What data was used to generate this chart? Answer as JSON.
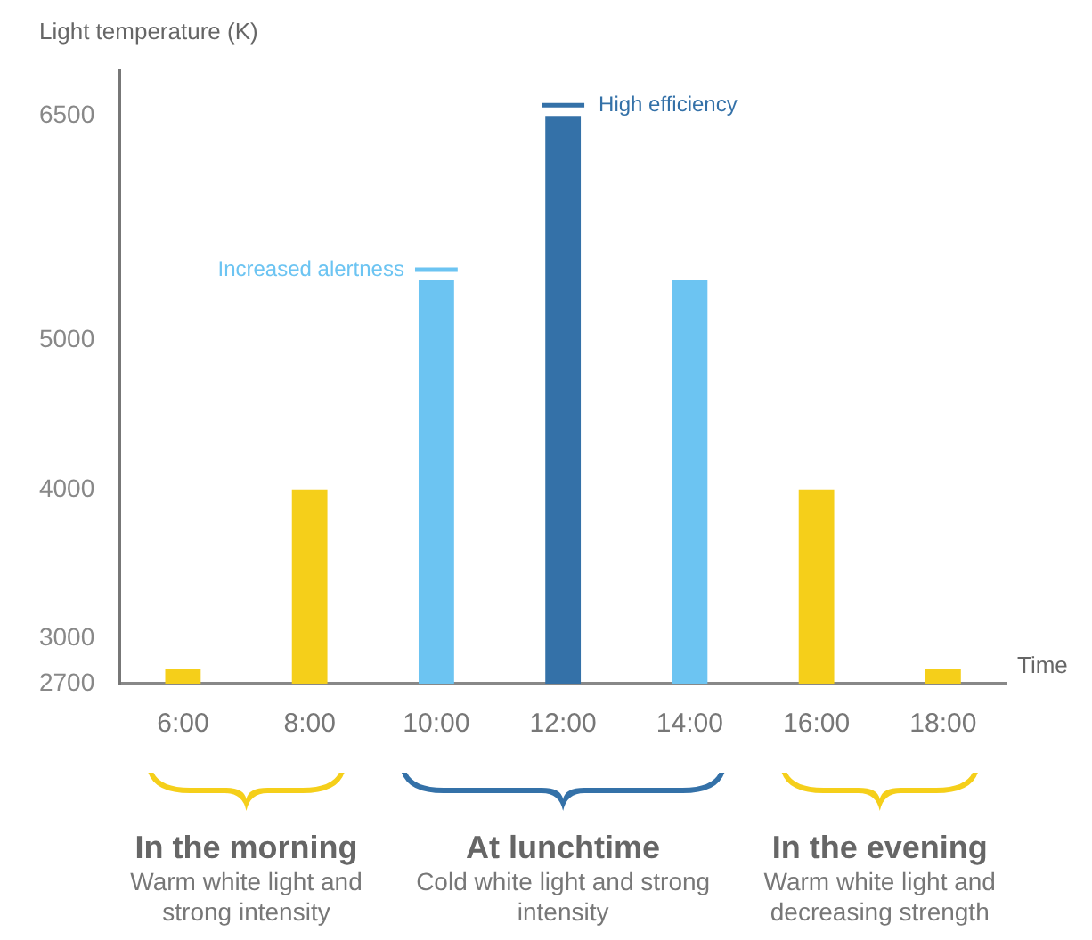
{
  "chart_data": {
    "type": "bar",
    "ylabel": "Light temperature (K)",
    "xlabel": "Time",
    "categories": [
      "6:00",
      "8:00",
      "10:00",
      "12:00",
      "14:00",
      "16:00",
      "18:00"
    ],
    "values": [
      2800,
      4000,
      5400,
      6500,
      5400,
      4000,
      2800
    ],
    "colors": [
      "#f5cf1a",
      "#f5cf1a",
      "#6cc4f2",
      "#3471a8",
      "#6cc4f2",
      "#f5cf1a",
      "#f5cf1a"
    ],
    "ylim": [
      2700,
      6800
    ],
    "yticks": [
      2700,
      3000,
      4000,
      5000,
      6500
    ],
    "grid": false,
    "legend": false,
    "annotations": [
      {
        "text": "Increased alertness",
        "x": "10:00",
        "y": 5400
      },
      {
        "text": "High efficiency",
        "x": "12:00",
        "y": 6500
      },
      "In the morning",
      "Warm white light and strong intensity",
      "At lunchtime",
      "Cold white light and strong intensity",
      "In the evening",
      "Warm white light and decreasing strength"
    ]
  }
}
